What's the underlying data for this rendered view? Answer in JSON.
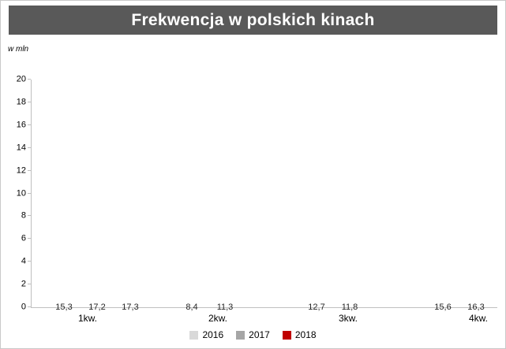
{
  "chart_data": {
    "type": "bar",
    "title": "Frekwencja w polskich kinach",
    "xlabel": "",
    "ylabel": "w mln",
    "ylim": [
      0,
      20
    ],
    "yticks": [
      0,
      2,
      4,
      6,
      8,
      10,
      12,
      14,
      16,
      18,
      20
    ],
    "categories": [
      "1kw.",
      "2kw.",
      "3kw.",
      "4kw."
    ],
    "series": [
      {
        "name": "2016",
        "color": "#d9d9d9",
        "values": [
          15.3,
          8.4,
          12.7,
          15.6
        ],
        "labels": [
          "15,3",
          "8,4",
          "12,7",
          "15,6"
        ]
      },
      {
        "name": "2017",
        "color": "#a6a6a6",
        "values": [
          17.2,
          11.3,
          11.8,
          16.3
        ],
        "labels": [
          "17,2",
          "11,3",
          "11,8",
          "16,3"
        ]
      },
      {
        "name": "2018",
        "color": "#c00000",
        "values": [
          17.3,
          null,
          null,
          null
        ],
        "labels": [
          "17,3",
          null,
          null,
          null
        ]
      }
    ],
    "grid": false,
    "legend_position": "bottom"
  },
  "colors": {
    "title_background": "#595959",
    "title_text": "#ffffff",
    "axis_line": "#bfbfbf",
    "bar_label_text": "#262626"
  }
}
